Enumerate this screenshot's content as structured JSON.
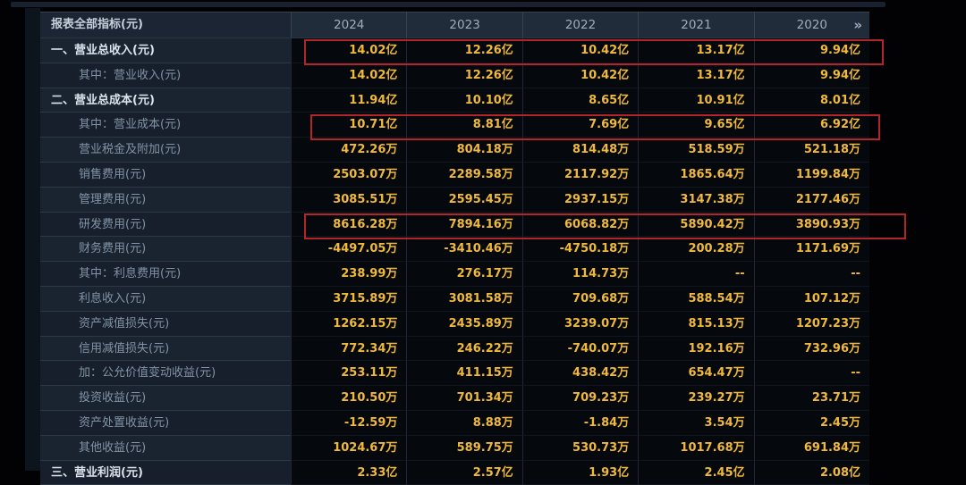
{
  "table": {
    "header": {
      "indicator_label": "报表全部指标(元)",
      "years": [
        "2024",
        "2023",
        "2022",
        "2021",
        "2020"
      ],
      "more_icon": "»"
    },
    "rows": [
      {
        "label": "一、营业总收入(元)",
        "indent": 1,
        "highlighted": true,
        "values": [
          "14.02亿",
          "12.26亿",
          "10.42亿",
          "13.17亿",
          "9.94亿"
        ]
      },
      {
        "label": "其中：营业收入(元)",
        "indent": 2,
        "values": [
          "14.02亿",
          "12.26亿",
          "10.42亿",
          "13.17亿",
          "9.94亿"
        ]
      },
      {
        "label": "二、营业总成本(元)",
        "indent": 1,
        "values": [
          "11.94亿",
          "10.10亿",
          "8.65亿",
          "10.91亿",
          "8.01亿"
        ]
      },
      {
        "label": "其中：营业成本(元)",
        "indent": 2,
        "highlighted": true,
        "values": [
          "10.71亿",
          "8.81亿",
          "7.69亿",
          "9.65亿",
          "6.92亿"
        ]
      },
      {
        "label": "营业税金及附加(元)",
        "indent": 2,
        "values": [
          "472.26万",
          "804.18万",
          "814.48万",
          "518.59万",
          "521.18万"
        ]
      },
      {
        "label": "销售费用(元)",
        "indent": 2,
        "values": [
          "2503.07万",
          "2289.58万",
          "2117.92万",
          "1865.64万",
          "1199.84万"
        ]
      },
      {
        "label": "管理费用(元)",
        "indent": 2,
        "values": [
          "3085.51万",
          "2595.45万",
          "2937.15万",
          "3147.38万",
          "2177.46万"
        ]
      },
      {
        "label": "研发费用(元)",
        "indent": 2,
        "highlighted": true,
        "values": [
          "8616.28万",
          "7894.16万",
          "6068.82万",
          "5890.42万",
          "3890.93万"
        ]
      },
      {
        "label": "财务费用(元)",
        "indent": 2,
        "values": [
          "-4497.05万",
          "-3410.46万",
          "-4750.18万",
          "200.28万",
          "1171.69万"
        ]
      },
      {
        "label": "其中：利息费用(元)",
        "indent": 2,
        "values": [
          "238.99万",
          "276.17万",
          "114.73万",
          "--",
          "--"
        ]
      },
      {
        "label": "利息收入(元)",
        "indent": 2,
        "values": [
          "3715.89万",
          "3081.58万",
          "709.68万",
          "588.54万",
          "107.12万"
        ]
      },
      {
        "label": "资产减值损失(元)",
        "indent": 2,
        "values": [
          "1262.15万",
          "2435.89万",
          "3239.07万",
          "815.13万",
          "1207.23万"
        ]
      },
      {
        "label": "信用减值损失(元)",
        "indent": 2,
        "values": [
          "772.34万",
          "246.22万",
          "-740.07万",
          "192.16万",
          "732.96万"
        ]
      },
      {
        "label": "加：公允价值变动收益(元)",
        "indent": 2,
        "values": [
          "253.11万",
          "411.15万",
          "438.42万",
          "654.47万",
          "--"
        ]
      },
      {
        "label": "投资收益(元)",
        "indent": 2,
        "values": [
          "210.50万",
          "701.34万",
          "709.23万",
          "239.27万",
          "23.71万"
        ]
      },
      {
        "label": "资产处置收益(元)",
        "indent": 2,
        "values": [
          "-12.59万",
          "8.88万",
          "-1.84万",
          "3.54万",
          "2.45万"
        ]
      },
      {
        "label": "其他收益(元)",
        "indent": 2,
        "values": [
          "1024.67万",
          "589.75万",
          "530.73万",
          "1017.68万",
          "691.84万"
        ]
      },
      {
        "label": "三、营业利润(元)",
        "indent": 1,
        "partial": true,
        "values": [
          "2.33亿",
          "2.57亿",
          "1.93亿",
          "2.45亿",
          "2.08亿"
        ]
      }
    ]
  },
  "colors": {
    "value_text": "#f0b93c",
    "highlight_border": "#b2252b",
    "header_text": "#9fabbc",
    "level1_label": "#dae2ec",
    "level2_label": "#8293a5",
    "label_cell_bg": "#1a2431",
    "data_cell_bg": "#05080d",
    "page_bg": "#020204"
  }
}
